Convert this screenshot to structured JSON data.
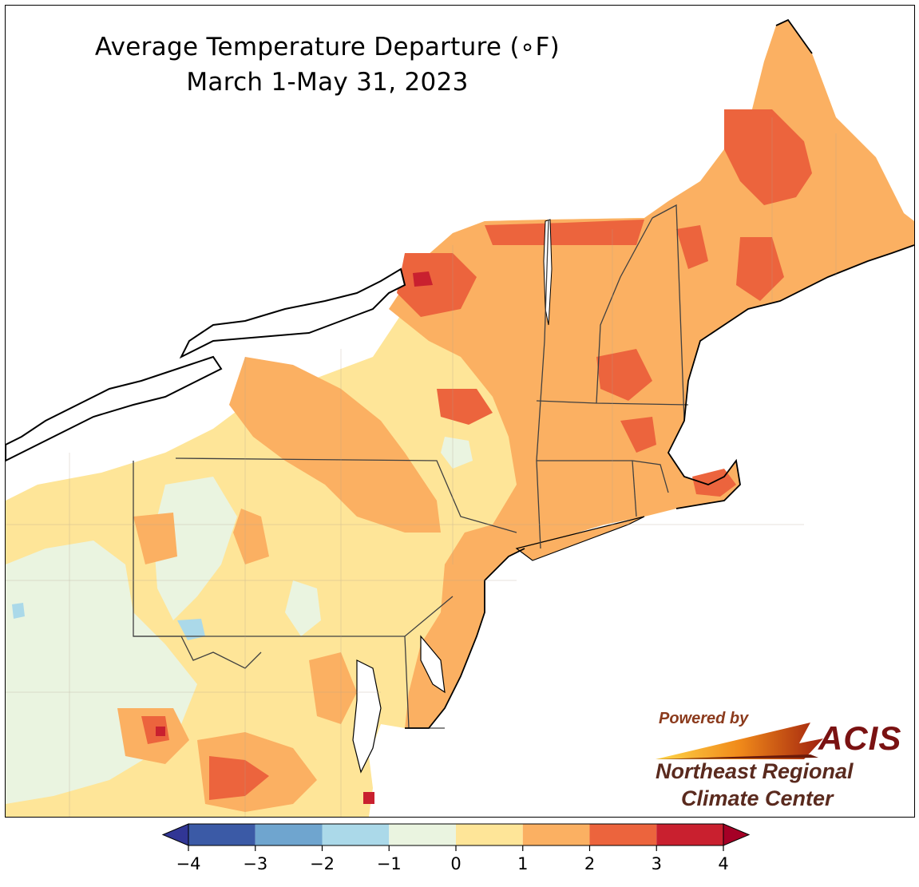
{
  "title": {
    "line1": "Average Temperature Departure (∘F)",
    "line2": "March 1-May 31, 2023"
  },
  "logo": {
    "powered_by": "Powered by",
    "brand": "ACIS",
    "org_line1": "Northeast Regional",
    "org_line2": "Climate Center"
  },
  "legend": {
    "min": -4,
    "max": 4,
    "step": 1,
    "ticks": [
      "−4",
      "−3",
      "−2",
      "−1",
      "0",
      "1",
      "2",
      "3",
      "4"
    ],
    "bins": [
      {
        "from": -4,
        "to": -3,
        "color": "#3b5aa6"
      },
      {
        "from": -3,
        "to": -2,
        "color": "#6fa5cf"
      },
      {
        "from": -2,
        "to": -1,
        "color": "#abd9e9"
      },
      {
        "from": -1,
        "to": 0,
        "color": "#eaf4e0"
      },
      {
        "from": 0,
        "to": 1,
        "color": "#fee598"
      },
      {
        "from": 1,
        "to": 2,
        "color": "#fbb062"
      },
      {
        "from": 2,
        "to": 3,
        "color": "#ec643d"
      },
      {
        "from": 3,
        "to": 4,
        "color": "#c9202f"
      }
    ],
    "under_color": "#313695",
    "over_color": "#a50026",
    "extend": "both"
  },
  "map": {
    "variable": "temperature departure",
    "region": "Northeast United States",
    "land_default_color": "#fee598",
    "water_color": "#ffffff"
  }
}
